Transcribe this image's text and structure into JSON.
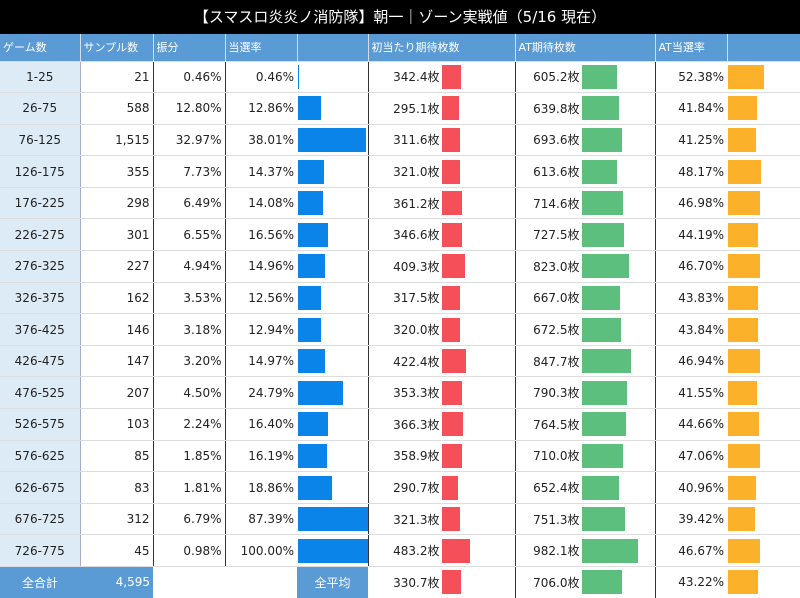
{
  "title": "【スマスロ炎炎ノ消防隊】朝一｜ゾーン実戦値（5/16 現在）",
  "headers": [
    "ゲーム数",
    "サンプル数",
    "振分",
    "当選率",
    "",
    "初当たり期待枚数",
    "AT期待枚数",
    "",
    "AT当選率",
    ""
  ],
  "colors": {
    "header": "#5b9bd5",
    "zone_bg": "#ddebf7",
    "rate_bar": "#0a84e8",
    "first_hit_bar": "#f5505a",
    "at_coins_bar": "#5cbf7e",
    "at_rate_bar": "#fbb22a"
  },
  "rows": [
    {
      "zone": "1-25",
      "samples": "21",
      "dist": "0.46%",
      "rate": "0.46%",
      "first": "342.4枚",
      "at": "605.2枚",
      "atrate": "52.38%",
      "rate_v": 0.46,
      "first_v": 342.4,
      "at_v": 605.2,
      "atrate_v": 52.38
    },
    {
      "zone": "26-75",
      "samples": "588",
      "dist": "12.80%",
      "rate": "12.86%",
      "first": "295.1枚",
      "at": "639.8枚",
      "atrate": "41.84%",
      "rate_v": 12.86,
      "first_v": 295.1,
      "at_v": 639.8,
      "atrate_v": 41.84
    },
    {
      "zone": "76-125",
      "samples": "1,515",
      "dist": "32.97%",
      "rate": "38.01%",
      "first": "311.6枚",
      "at": "693.6枚",
      "atrate": "41.25%",
      "rate_v": 38.01,
      "first_v": 311.6,
      "at_v": 693.6,
      "atrate_v": 41.25
    },
    {
      "zone": "126-175",
      "samples": "355",
      "dist": "7.73%",
      "rate": "14.37%",
      "first": "321.0枚",
      "at": "613.6枚",
      "atrate": "48.17%",
      "rate_v": 14.37,
      "first_v": 321.0,
      "at_v": 613.6,
      "atrate_v": 48.17
    },
    {
      "zone": "176-225",
      "samples": "298",
      "dist": "6.49%",
      "rate": "14.08%",
      "first": "361.2枚",
      "at": "714.6枚",
      "atrate": "46.98%",
      "rate_v": 14.08,
      "first_v": 361.2,
      "at_v": 714.6,
      "atrate_v": 46.98
    },
    {
      "zone": "226-275",
      "samples": "301",
      "dist": "6.55%",
      "rate": "16.56%",
      "first": "346.6枚",
      "at": "727.5枚",
      "atrate": "44.19%",
      "rate_v": 16.56,
      "first_v": 346.6,
      "at_v": 727.5,
      "atrate_v": 44.19
    },
    {
      "zone": "276-325",
      "samples": "227",
      "dist": "4.94%",
      "rate": "14.96%",
      "first": "409.3枚",
      "at": "823.0枚",
      "atrate": "46.70%",
      "rate_v": 14.96,
      "first_v": 409.3,
      "at_v": 823.0,
      "atrate_v": 46.7
    },
    {
      "zone": "326-375",
      "samples": "162",
      "dist": "3.53%",
      "rate": "12.56%",
      "first": "317.5枚",
      "at": "667.0枚",
      "atrate": "43.83%",
      "rate_v": 12.56,
      "first_v": 317.5,
      "at_v": 667.0,
      "atrate_v": 43.83
    },
    {
      "zone": "376-425",
      "samples": "146",
      "dist": "3.18%",
      "rate": "12.94%",
      "first": "320.0枚",
      "at": "672.5枚",
      "atrate": "43.84%",
      "rate_v": 12.94,
      "first_v": 320.0,
      "at_v": 672.5,
      "atrate_v": 43.84
    },
    {
      "zone": "426-475",
      "samples": "147",
      "dist": "3.20%",
      "rate": "14.97%",
      "first": "422.4枚",
      "at": "847.7枚",
      "atrate": "46.94%",
      "rate_v": 14.97,
      "first_v": 422.4,
      "at_v": 847.7,
      "atrate_v": 46.94
    },
    {
      "zone": "476-525",
      "samples": "207",
      "dist": "4.50%",
      "rate": "24.79%",
      "first": "353.3枚",
      "at": "790.3枚",
      "atrate": "41.55%",
      "rate_v": 24.79,
      "first_v": 353.3,
      "at_v": 790.3,
      "atrate_v": 41.55
    },
    {
      "zone": "526-575",
      "samples": "103",
      "dist": "2.24%",
      "rate": "16.40%",
      "first": "366.3枚",
      "at": "764.5枚",
      "atrate": "44.66%",
      "rate_v": 16.4,
      "first_v": 366.3,
      "at_v": 764.5,
      "atrate_v": 44.66
    },
    {
      "zone": "576-625",
      "samples": "85",
      "dist": "1.85%",
      "rate": "16.19%",
      "first": "358.9枚",
      "at": "710.0枚",
      "atrate": "47.06%",
      "rate_v": 16.19,
      "first_v": 358.9,
      "at_v": 710.0,
      "atrate_v": 47.06
    },
    {
      "zone": "626-675",
      "samples": "83",
      "dist": "1.81%",
      "rate": "18.86%",
      "first": "290.7枚",
      "at": "652.4枚",
      "atrate": "40.96%",
      "rate_v": 18.86,
      "first_v": 290.7,
      "at_v": 652.4,
      "atrate_v": 40.96
    },
    {
      "zone": "676-725",
      "samples": "312",
      "dist": "6.79%",
      "rate": "87.39%",
      "first": "321.3枚",
      "at": "751.3枚",
      "atrate": "39.42%",
      "rate_v": 87.39,
      "first_v": 321.3,
      "at_v": 751.3,
      "atrate_v": 39.42
    },
    {
      "zone": "726-775",
      "samples": "45",
      "dist": "0.98%",
      "rate": "100.00%",
      "first": "483.2枚",
      "at": "982.1枚",
      "atrate": "46.67%",
      "rate_v": 100.0,
      "first_v": 483.2,
      "at_v": 982.1,
      "atrate_v": 46.67
    }
  ],
  "total": {
    "label": "全合計",
    "samples": "4,595",
    "avg_label": "全平均",
    "first": "330.7枚",
    "at": "706.0枚",
    "atrate": "43.22%",
    "first_v": 330.7,
    "at_v": 706.0,
    "atrate_v": 43.22
  }
}
